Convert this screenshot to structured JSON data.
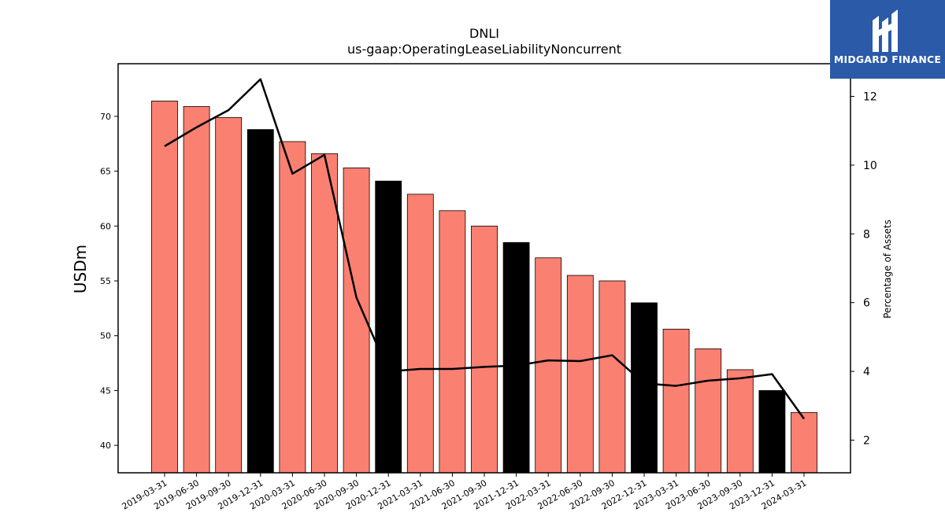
{
  "brand": {
    "name": "MIDGARD FINANCE",
    "logo_icon": "midgard-logo-icon",
    "background": "#2a5aa8"
  },
  "chart_data": {
    "type": "bar",
    "title": "DNLI",
    "subtitle": "us-gaap:OperatingLeaseLiabilityNoncurrent",
    "ylabel": "USDm",
    "y2label": "Percentage of Assets",
    "ylim": [
      37.5,
      74.8
    ],
    "y2lim": [
      1.05,
      12.95
    ],
    "yticks": [
      40,
      45,
      50,
      55,
      60,
      65,
      70
    ],
    "y2ticks": [
      2,
      4,
      6,
      8,
      10,
      12
    ],
    "grid": false,
    "colors": {
      "quarter": "#fa8072",
      "year_end": "#000000",
      "line": "#000000"
    },
    "categories": [
      "2019-03-31",
      "2019-06-30",
      "2019-09-30",
      "2019-12-31",
      "2020-03-31",
      "2020-06-30",
      "2020-09-30",
      "2020-12-31",
      "2021-03-31",
      "2021-06-30",
      "2021-09-30",
      "2021-12-31",
      "2022-03-31",
      "2022-06-30",
      "2022-09-30",
      "2022-12-31",
      "2023-03-31",
      "2023-06-30",
      "2023-09-30",
      "2023-12-31",
      "2024-03-31"
    ],
    "series": [
      {
        "kind": "bar",
        "axis": "left",
        "values": [
          71.4,
          70.9,
          69.9,
          68.8,
          67.7,
          66.6,
          65.3,
          64.1,
          62.9,
          61.4,
          60.0,
          58.5,
          57.1,
          55.5,
          55.0,
          53.0,
          50.6,
          48.8,
          46.9,
          45.0,
          43.0
        ],
        "year_end": [
          false,
          false,
          false,
          true,
          false,
          false,
          false,
          true,
          false,
          false,
          false,
          true,
          false,
          false,
          false,
          true,
          false,
          false,
          false,
          true,
          false
        ]
      },
      {
        "kind": "line",
        "axis": "right",
        "values": [
          10.55,
          11.1,
          11.6,
          12.5,
          9.75,
          10.3,
          6.15,
          4.0,
          4.07,
          4.07,
          4.13,
          4.17,
          4.32,
          4.3,
          4.47,
          3.65,
          3.58,
          3.73,
          3.8,
          3.92,
          2.62
        ]
      }
    ]
  }
}
